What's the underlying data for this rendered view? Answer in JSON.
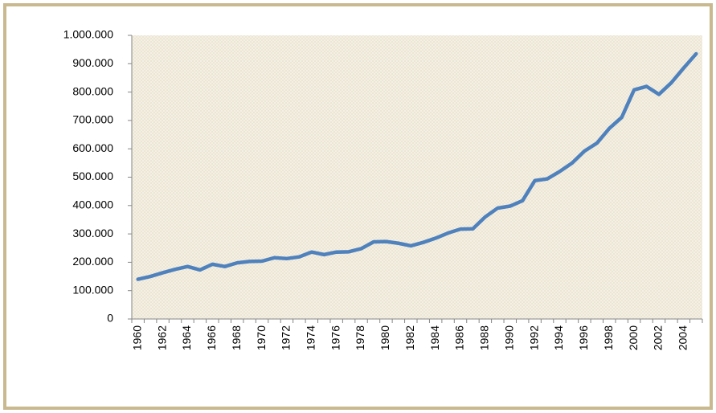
{
  "chart_data": {
    "type": "line",
    "categories": [
      "1960",
      null,
      "1962",
      null,
      "1964",
      null,
      "1966",
      null,
      "1968",
      null,
      "1970",
      null,
      "1972",
      null,
      "1974",
      null,
      "1976",
      null,
      "1978",
      null,
      "1980",
      null,
      "1982",
      null,
      "1984",
      null,
      "1986",
      null,
      "1988",
      null,
      "1990",
      null,
      "1992",
      null,
      "1994",
      null,
      "1996",
      null,
      "1998",
      null,
      "2000",
      null,
      "2002",
      null,
      "2004",
      null
    ],
    "series": [
      {
        "color": "#4f81bd",
        "values": [
          140000,
          150000,
          163000,
          175000,
          185000,
          173000,
          193000,
          185000,
          198000,
          203000,
          204000,
          216000,
          213000,
          219000,
          236000,
          227000,
          236000,
          237000,
          248000,
          272000,
          273000,
          267000,
          258000,
          270000,
          285000,
          303000,
          317000,
          318000,
          360000,
          391000,
          398000,
          417000,
          488000,
          494000,
          520000,
          550000,
          592000,
          620000,
          672000,
          711000,
          808000,
          820000,
          792000,
          833000,
          885000,
          935000
        ]
      }
    ],
    "ylim": [
      0,
      1000000
    ],
    "yticks": [
      0,
      {
        "value": 100000,
        "label": "100.000"
      },
      {
        "value": 200000,
        "label": "200.000"
      },
      {
        "value": 300000,
        "label": "300.000"
      },
      {
        "value": 400000,
        "label": "400.000"
      },
      {
        "value": 500000,
        "label": "500.000"
      },
      {
        "value": 600000,
        "label": "600.000"
      },
      {
        "value": 700000,
        "label": "700.000"
      },
      {
        "value": 800000,
        "label": "800.000"
      },
      {
        "value": 900000,
        "label": "900.000"
      },
      {
        "value": 1000000,
        "label": "1.000.000"
      }
    ]
  }
}
